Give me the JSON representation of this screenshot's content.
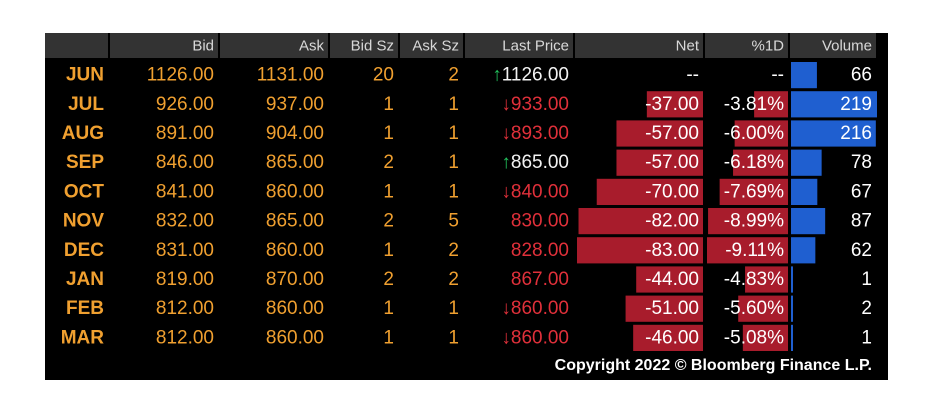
{
  "header": [
    "Bid",
    "Ask",
    "Bid Sz",
    "Ask Sz",
    "Last Price",
    "Net",
    "%1D",
    "Volume"
  ],
  "rows": [
    {
      "month": "JUN",
      "bid": "1126.00",
      "ask": "1131.00",
      "bid_sz": 20,
      "ask_sz": 2,
      "arrow": "↑",
      "arrow_color": "#22c55e",
      "last": "1126.00",
      "last_color": "#f2f2f2",
      "net": "--",
      "pct": "--",
      "volume": 66
    },
    {
      "month": "JUL",
      "bid": "926.00",
      "ask": "937.00",
      "bid_sz": 1,
      "ask_sz": 1,
      "arrow": "↓",
      "arrow_color": "#e0303a",
      "last": "933.00",
      "last_color": "#e0303a",
      "net": {
        "value": -37,
        "label": "-37.00"
      },
      "pct": {
        "value": -3.81,
        "label": "-3.81%"
      },
      "volume": 219
    },
    {
      "month": "AUG",
      "bid": "891.00",
      "ask": "904.00",
      "bid_sz": 1,
      "ask_sz": 1,
      "arrow": "↓",
      "arrow_color": "#e0303a",
      "last": "893.00",
      "last_color": "#e0303a",
      "net": {
        "value": -57,
        "label": "-57.00"
      },
      "pct": {
        "value": -6.0,
        "label": "-6.00%"
      },
      "volume": 216
    },
    {
      "month": "SEP",
      "bid": "846.00",
      "ask": "865.00",
      "bid_sz": 2,
      "ask_sz": 1,
      "arrow": "↑",
      "arrow_color": "#22c55e",
      "last": "865.00",
      "last_color": "#f2f2f2",
      "net": {
        "value": -57,
        "label": "-57.00"
      },
      "pct": {
        "value": -6.18,
        "label": "-6.18%"
      },
      "volume": 78
    },
    {
      "month": "OCT",
      "bid": "841.00",
      "ask": "860.00",
      "bid_sz": 1,
      "ask_sz": 1,
      "arrow": "↓",
      "arrow_color": "#e0303a",
      "last": "840.00",
      "last_color": "#e0303a",
      "net": {
        "value": -70,
        "label": "-70.00"
      },
      "pct": {
        "value": -7.69,
        "label": "-7.69%"
      },
      "volume": 67
    },
    {
      "month": "NOV",
      "bid": "832.00",
      "ask": "865.00",
      "bid_sz": 2,
      "ask_sz": 5,
      "last": "830.00",
      "last_color": "#e0303a",
      "net": {
        "value": -82,
        "label": "-82.00"
      },
      "pct": {
        "value": -8.99,
        "label": "-8.99%"
      },
      "volume": 87
    },
    {
      "month": "DEC",
      "bid": "831.00",
      "ask": "860.00",
      "bid_sz": 1,
      "ask_sz": 2,
      "last": "828.00",
      "last_color": "#e0303a",
      "net": {
        "value": -83,
        "label": "-83.00"
      },
      "pct": {
        "value": -9.11,
        "label": "-9.11%"
      },
      "volume": 62
    },
    {
      "month": "JAN",
      "bid": "819.00",
      "ask": "870.00",
      "bid_sz": 2,
      "ask_sz": 2,
      "last": "867.00",
      "last_color": "#e0303a",
      "net": {
        "value": -44,
        "label": "-44.00"
      },
      "pct": {
        "value": -4.83,
        "label": "-4.83%"
      },
      "volume": 1
    },
    {
      "month": "FEB",
      "bid": "812.00",
      "ask": "860.00",
      "bid_sz": 1,
      "ask_sz": 1,
      "arrow": "↓",
      "arrow_color": "#e0303a",
      "last": "860.00",
      "last_color": "#e0303a",
      "net": {
        "value": -51,
        "label": "-51.00"
      },
      "pct": {
        "value": -5.6,
        "label": "-5.60%"
      },
      "volume": 2
    },
    {
      "month": "MAR",
      "bid": "812.00",
      "ask": "860.00",
      "bid_sz": 1,
      "ask_sz": 1,
      "arrow": "↓",
      "arrow_color": "#e0303a",
      "last": "860.00",
      "last_color": "#e0303a",
      "net": {
        "value": -46,
        "label": "-46.00"
      },
      "pct": {
        "value": -5.08,
        "label": "-5.08%"
      },
      "volume": 1
    }
  ],
  "footer": "Copyright 2022 © Bloomberg Finance L.P."
}
